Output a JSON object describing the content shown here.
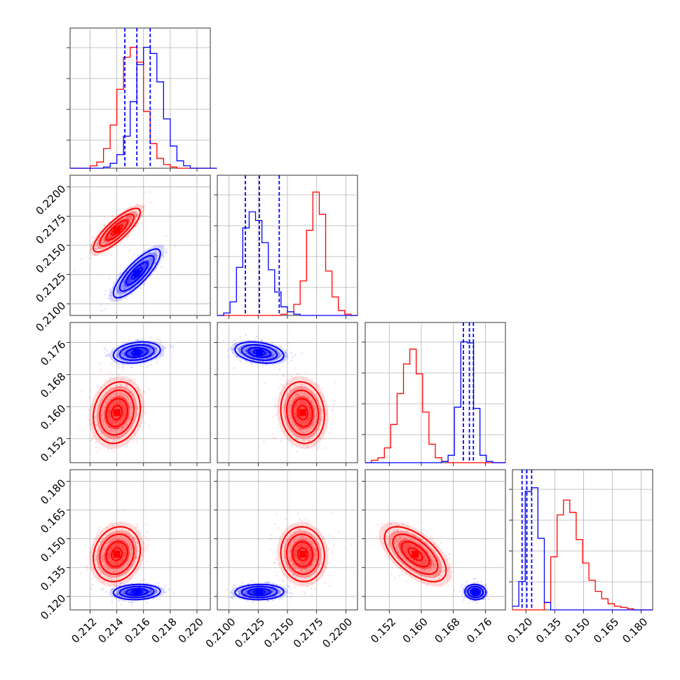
{
  "chart_data": {
    "type": "corner",
    "grid": true,
    "colors": {
      "series_1": "#ff0000",
      "series_2": "#0000ff"
    },
    "parameters": [
      {
        "range": [
          0.2105,
          0.221
        ],
        "ticks": [
          0.212,
          0.214,
          0.216,
          0.218,
          0.22
        ],
        "tick_labels": [
          "0.212",
          "0.214",
          "0.216",
          "0.218",
          "0.220"
        ]
      },
      {
        "range": [
          0.209,
          0.221
        ],
        "ticks": [
          0.21,
          0.2125,
          0.215,
          0.2175,
          0.22
        ],
        "tick_labels": [
          "0.2100",
          "0.2125",
          "0.2150",
          "0.2175",
          "0.2200"
        ]
      },
      {
        "range": [
          0.146,
          0.181
        ],
        "ticks": [
          0.152,
          0.16,
          0.168,
          0.176
        ],
        "tick_labels": [
          "0.152",
          "0.160",
          "0.168",
          "0.176"
        ]
      },
      {
        "range": [
          0.113,
          0.186
        ],
        "ticks": [
          0.12,
          0.135,
          0.15,
          0.165,
          0.18
        ],
        "tick_labels": [
          "0.120",
          "0.135",
          "0.150",
          "0.165",
          "0.180"
        ]
      }
    ],
    "series": [
      {
        "color": "#ff0000",
        "mean": [
          0.214,
          0.2163,
          0.1585,
          0.142
        ],
        "sd": [
          0.0008,
          0.00085,
          0.0035,
          0.0065
        ]
      },
      {
        "color": "#0000ff",
        "mean": [
          0.2155,
          0.2126,
          0.1735,
          0.1223
        ],
        "sd": [
          0.0008,
          0.00095,
          0.0012,
          0.0018
        ]
      }
    ],
    "histograms": [
      {
        "bins": [
          0.2105,
          0.2215
        ],
        "series_1": [
          0,
          0,
          0,
          2,
          5,
          16,
          35,
          64,
          90,
          98,
          86,
          46,
          20,
          8,
          3,
          1,
          0,
          0,
          0,
          0,
          0,
          0
        ],
        "series_2": [
          0,
          0,
          0,
          0,
          0,
          1,
          4,
          11,
          26,
          54,
          84,
          98,
          93,
          70,
          40,
          18,
          6,
          2,
          0,
          0,
          0,
          0
        ]
      },
      {
        "bins": [
          0.209,
          0.221
        ],
        "series_1": [
          0,
          0,
          0,
          0,
          0,
          0,
          0,
          0,
          0,
          0,
          1,
          3,
          9,
          28,
          69,
          100,
          82,
          36,
          15,
          4,
          1,
          0
        ],
        "series_2": [
          0,
          2,
          11,
          39,
          71,
          84,
          77,
          59,
          37,
          19,
          7,
          3,
          1,
          0,
          0,
          0,
          0,
          0,
          0,
          0,
          0,
          0
        ]
      },
      {
        "bins": [
          0.146,
          0.181
        ],
        "series_1": [
          0,
          2,
          4,
          12,
          31,
          56,
          80,
          92,
          72,
          41,
          15,
          4,
          1,
          0,
          0,
          0,
          0,
          0,
          0,
          0,
          0,
          0
        ],
        "series_2": [
          0,
          0,
          0,
          0,
          0,
          0,
          0,
          0,
          0,
          0,
          0,
          0,
          1,
          6,
          45,
          98,
          97,
          44,
          6,
          1,
          0,
          0
        ]
      },
      {
        "bins": [
          0.113,
          0.186
        ],
        "series_1": [
          0,
          0,
          0,
          0,
          0,
          6,
          43,
          77,
          89,
          79,
          57,
          38,
          24,
          15,
          9,
          5,
          3,
          2,
          1,
          0,
          0,
          0
        ],
        "series_2": [
          3,
          23,
          96,
          99,
          58,
          6,
          0,
          0,
          0,
          0,
          0,
          0,
          0,
          0,
          0,
          0,
          0,
          0,
          0,
          0,
          0,
          0
        ]
      }
    ],
    "quantile_lines": {
      "color": "#0000ff",
      "style": "dashed",
      "values": [
        [
          0.2146,
          0.2155,
          0.2165
        ],
        [
          0.2114,
          0.2126,
          0.2143
        ],
        [
          0.1705,
          0.172,
          0.173
        ],
        [
          0.118,
          0.1205,
          0.123
        ]
      ]
    }
  }
}
